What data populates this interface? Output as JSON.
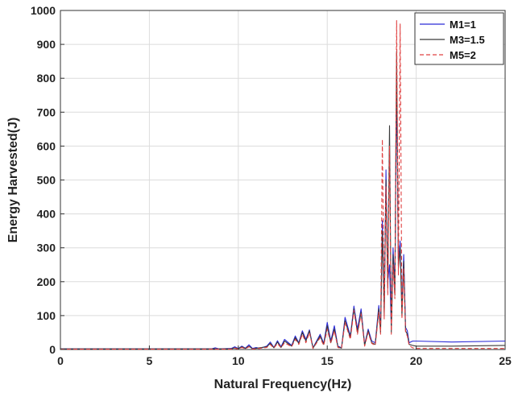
{
  "chart_data": {
    "type": "line",
    "title": "",
    "xlabel": "Natural Frequency(Hz)",
    "ylabel": "Energy Harvested(J)",
    "xlim": [
      0,
      25
    ],
    "ylim": [
      0,
      1000
    ],
    "xticks": [
      "0",
      "5",
      "10",
      "15",
      "20",
      "25"
    ],
    "yticks": [
      "0",
      "100",
      "200",
      "300",
      "400",
      "500",
      "600",
      "700",
      "800",
      "900",
      "1000"
    ],
    "grid": true,
    "legend_position": "top-right",
    "series": [
      {
        "name": "M1=1",
        "color": "#2b2bd6",
        "dash": "solid",
        "x": [
          0,
          8.5,
          8.7,
          8.9,
          9.6,
          9.8,
          10.0,
          10.2,
          10.4,
          10.6,
          10.8,
          11.0,
          11.2,
          11.6,
          11.8,
          12.0,
          12.2,
          12.4,
          12.6,
          13.0,
          13.2,
          13.4,
          13.6,
          13.8,
          14.0,
          14.2,
          14.6,
          14.8,
          15.0,
          15.2,
          15.4,
          15.6,
          15.8,
          16.0,
          16.3,
          16.5,
          16.7,
          16.9,
          17.1,
          17.3,
          17.5,
          17.7,
          17.9,
          18.0,
          18.1,
          18.2,
          18.3,
          18.4,
          18.5,
          18.6,
          18.7,
          18.8,
          18.9,
          19.0,
          19.1,
          19.2,
          19.3,
          19.4,
          19.5,
          19.6,
          19.8,
          20.0,
          22.0,
          25.0
        ],
        "y": [
          2,
          2,
          5,
          2,
          3,
          8,
          3,
          10,
          4,
          14,
          3,
          6,
          3,
          10,
          22,
          6,
          26,
          8,
          30,
          12,
          40,
          20,
          55,
          30,
          58,
          5,
          45,
          18,
          80,
          25,
          70,
          10,
          5,
          95,
          40,
          128,
          60,
          120,
          15,
          60,
          25,
          20,
          130,
          60,
          380,
          120,
          530,
          200,
          250,
          60,
          300,
          180,
          780,
          260,
          320,
          120,
          280,
          65,
          55,
          20,
          25,
          25,
          22,
          25
        ]
      },
      {
        "name": "M3=1.5",
        "color": "#3a3a3a",
        "dash": "solid",
        "x": [
          0,
          9.6,
          9.8,
          10.0,
          10.2,
          10.4,
          10.6,
          10.8,
          11.6,
          11.8,
          12.0,
          12.2,
          12.4,
          12.6,
          13.0,
          13.2,
          13.4,
          13.6,
          13.8,
          14.0,
          14.2,
          14.6,
          14.8,
          15.0,
          15.2,
          15.4,
          15.6,
          15.8,
          16.0,
          16.3,
          16.5,
          16.7,
          16.9,
          17.1,
          17.3,
          17.5,
          17.7,
          17.9,
          18.0,
          18.1,
          18.2,
          18.3,
          18.4,
          18.5,
          18.6,
          18.7,
          18.8,
          18.9,
          19.0,
          19.1,
          19.2,
          19.3,
          19.4,
          19.5,
          19.6,
          19.8,
          20.0,
          22.0,
          25.0
        ],
        "y": [
          2,
          2,
          5,
          2,
          8,
          3,
          10,
          2,
          8,
          18,
          5,
          22,
          6,
          25,
          10,
          35,
          18,
          50,
          25,
          55,
          4,
          40,
          15,
          70,
          20,
          60,
          8,
          4,
          85,
          35,
          120,
          50,
          110,
          12,
          55,
          20,
          15,
          120,
          50,
          350,
          100,
          500,
          180,
          660,
          50,
          280,
          160,
          880,
          240,
          300,
          100,
          260,
          55,
          45,
          15,
          12,
          10,
          10,
          12
        ]
      },
      {
        "name": "M5=2",
        "color": "#e04040",
        "dash": "dashed",
        "x": [
          0,
          9.6,
          9.8,
          10.0,
          10.2,
          10.4,
          10.6,
          10.8,
          11.6,
          11.8,
          12.0,
          12.2,
          12.4,
          12.6,
          13.0,
          13.2,
          13.4,
          13.6,
          13.8,
          14.0,
          14.2,
          14.6,
          14.8,
          15.0,
          15.2,
          15.4,
          15.6,
          15.8,
          16.0,
          16.3,
          16.5,
          16.7,
          16.9,
          17.1,
          17.3,
          17.5,
          17.7,
          17.9,
          18.0,
          18.1,
          18.2,
          18.3,
          18.4,
          18.5,
          18.6,
          18.7,
          18.8,
          18.9,
          19.0,
          19.1,
          19.2,
          19.3,
          19.4,
          19.5,
          19.6,
          19.8,
          20.0,
          22.0,
          25.0
        ],
        "y": [
          1,
          1,
          4,
          1,
          6,
          2,
          8,
          1,
          6,
          15,
          4,
          18,
          5,
          20,
          8,
          30,
          15,
          45,
          20,
          50,
          3,
          35,
          12,
          60,
          18,
          55,
          6,
          3,
          80,
          30,
          115,
          45,
          105,
          10,
          50,
          18,
          12,
          110,
          45,
          620,
          90,
          480,
          160,
          600,
          45,
          250,
          150,
          970,
          220,
          960,
          90,
          240,
          50,
          40,
          12,
          5,
          3,
          3,
          3
        ]
      }
    ]
  }
}
